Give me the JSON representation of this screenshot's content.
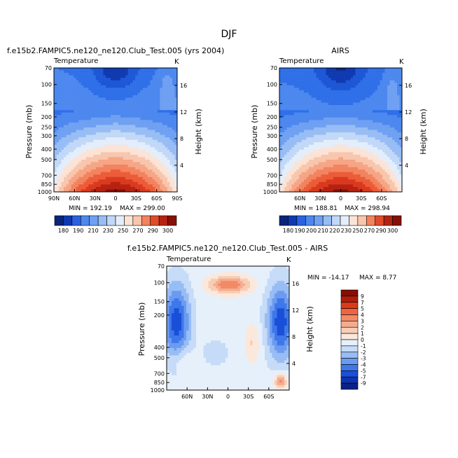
{
  "figure_title": "DJF",
  "chart_data": [
    {
      "type": "contour",
      "id": "model",
      "title": "f.e15b2.FAMPIC5.ne120_ne120.Club_Test.005 (yrs 2004)",
      "variable": "Temperature",
      "units": "K",
      "ylabel": "Pressure (mb)",
      "ylabel_right": "Height (km)",
      "pressure_ticks": [
        "70",
        "100",
        "150",
        "200",
        "250",
        "300",
        "400",
        "500",
        "700",
        "850",
        "1000"
      ],
      "height_ticks": [
        "16",
        "12",
        "8",
        "4"
      ],
      "lat_ticks": [
        "90N",
        "60N",
        "30N",
        "0",
        "30S",
        "60S",
        "90S"
      ],
      "min_label": "MIN = 192.19",
      "max_label": "MAX = 299.00",
      "levels": [
        180,
        190,
        200,
        210,
        220,
        230,
        240,
        250,
        260,
        270,
        280,
        290,
        300
      ],
      "colorbar_labels": [
        "180",
        "190",
        "210",
        "230",
        "250",
        "270",
        "290",
        "300"
      ]
    },
    {
      "type": "contour",
      "id": "obs",
      "title": "AIRS",
      "variable": "Temperature",
      "units": "K",
      "ylabel": "Pressure (mb)",
      "ylabel_right": "Height (km)",
      "pressure_ticks": [
        "70",
        "100",
        "150",
        "200",
        "250",
        "300",
        "400",
        "500",
        "700",
        "850",
        "1000"
      ],
      "height_ticks": [
        "16",
        "12",
        "8",
        "4"
      ],
      "lat_ticks": [
        "60N",
        "30N",
        "0",
        "30S",
        "60S"
      ],
      "min_label": "MIN = 188.81",
      "max_label": "MAX = 298.94",
      "levels": [
        180,
        190,
        200,
        210,
        220,
        230,
        240,
        250,
        260,
        270,
        280,
        290,
        300
      ],
      "colorbar_labels": [
        "180",
        "190",
        "200",
        "210",
        "220",
        "230",
        "250",
        "270",
        "290",
        "300"
      ]
    },
    {
      "type": "contour",
      "id": "diff",
      "title": "f.e15b2.FAMPIC5.ne120_ne120.Club_Test.005 - AIRS",
      "variable": "Temperature",
      "units": "K",
      "ylabel": "Pressure (mb)",
      "ylabel_right": "Height (km)",
      "pressure_ticks": [
        "70",
        "100",
        "150",
        "200",
        "400",
        "500",
        "700",
        "850",
        "1000"
      ],
      "height_ticks": [
        "16",
        "12",
        "8",
        "4"
      ],
      "lat_ticks": [
        "60N",
        "30N",
        "0",
        "30S",
        "60S"
      ],
      "min_label": "MIN = -14.17",
      "max_label": "MAX =    8.77",
      "levels": [
        -9,
        -7,
        -5,
        -4,
        -3,
        -2,
        -1,
        0,
        1,
        2,
        3,
        4,
        5,
        7,
        9
      ],
      "colorbar_labels": [
        "9",
        "7",
        "5",
        "4",
        "3",
        "2",
        "1",
        "0",
        "-1",
        "-2",
        "-3",
        "-4",
        "-5",
        "-7",
        "-9"
      ]
    }
  ],
  "colors": {
    "seq": [
      "#08257a",
      "#0f39b0",
      "#1d57d6",
      "#2f6fe8",
      "#4d88ef",
      "#6fa0f2",
      "#97bdf5",
      "#c2d8f8",
      "#e4eefb",
      "#fbe3d6",
      "#f8c6ad",
      "#f6a585",
      "#f2835f",
      "#ec5c38",
      "#d93a1f",
      "#b62212",
      "#861006"
    ],
    "cbar": [
      "#08257a",
      "#0f39b0",
      "#2a62e0",
      "#4d88ef",
      "#6fa0f2",
      "#97bdf5",
      "#c2d8f8",
      "#e4eefb",
      "#fbe3d6",
      "#f8c6ad",
      "#f2835f",
      "#e14b2a",
      "#b62212",
      "#861006"
    ],
    "diff": [
      "#0a2286",
      "#0e33b0",
      "#1a4fd8",
      "#3e77ea",
      "#6b9bf0",
      "#98bcf4",
      "#c6dbf8",
      "#e6f0fb",
      "#fbe8dc",
      "#f8cdb6",
      "#f5ac8e",
      "#f28a66",
      "#ef6540",
      "#dc3a1a",
      "#b01d0c",
      "#860e04"
    ]
  }
}
